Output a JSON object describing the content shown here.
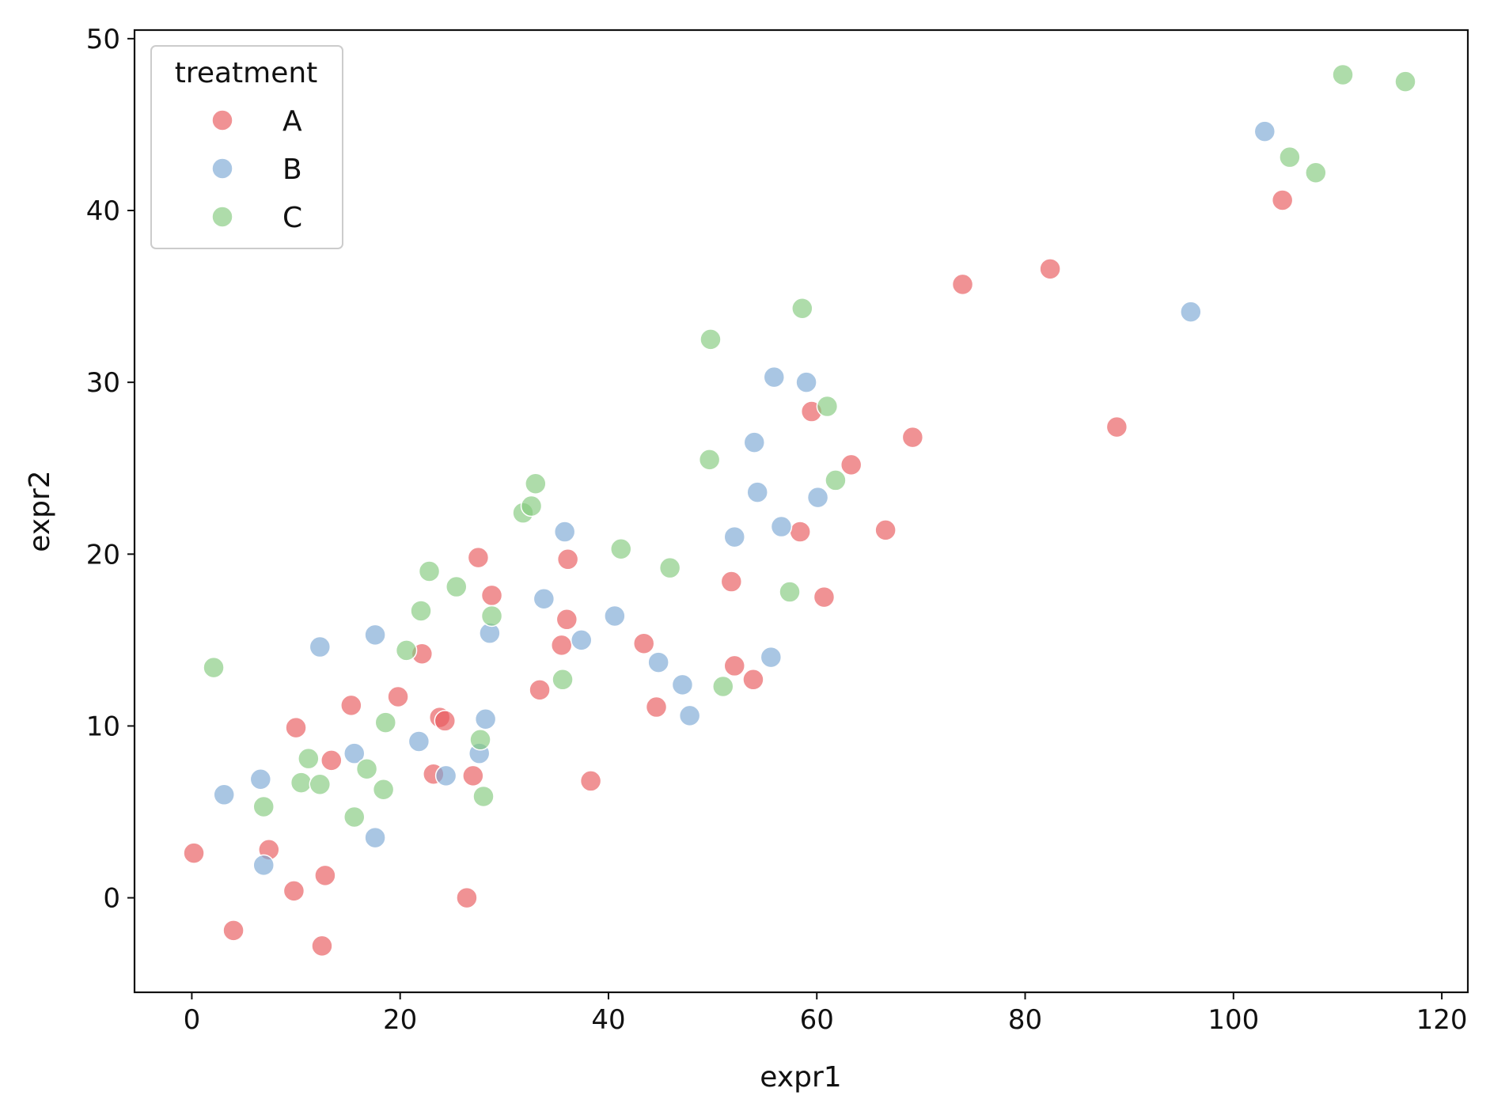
{
  "chart_data": {
    "type": "scatter",
    "xlabel": "expr1",
    "ylabel": "expr2",
    "xlim": [
      -5.5,
      122.5
    ],
    "ylim": [
      -5.5,
      50.5
    ],
    "xticks": [
      0,
      20,
      40,
      60,
      80,
      100,
      120
    ],
    "yticks": [
      0,
      10,
      20,
      30,
      40,
      50
    ],
    "grid": false,
    "legend": {
      "title": "treatment",
      "placement": "top-left"
    },
    "series": [
      {
        "name": "A",
        "color": "#e8585a",
        "points": [
          [
            0.2,
            2.6
          ],
          [
            4.0,
            -1.9
          ],
          [
            7.4,
            2.8
          ],
          [
            9.8,
            0.4
          ],
          [
            10.0,
            9.9
          ],
          [
            12.5,
            -2.8
          ],
          [
            12.8,
            1.3
          ],
          [
            13.4,
            8.0
          ],
          [
            15.3,
            11.2
          ],
          [
            19.8,
            11.7
          ],
          [
            22.1,
            14.2
          ],
          [
            23.2,
            7.2
          ],
          [
            23.8,
            10.5
          ],
          [
            24.3,
            10.3
          ],
          [
            26.4,
            0.0
          ],
          [
            27.0,
            7.1
          ],
          [
            27.5,
            19.8
          ],
          [
            28.8,
            17.6
          ],
          [
            33.4,
            12.1
          ],
          [
            35.5,
            14.7
          ],
          [
            36.0,
            16.2
          ],
          [
            36.1,
            19.7
          ],
          [
            38.3,
            6.8
          ],
          [
            43.4,
            14.8
          ],
          [
            44.6,
            11.1
          ],
          [
            51.8,
            18.4
          ],
          [
            52.1,
            13.5
          ],
          [
            53.9,
            12.7
          ],
          [
            58.4,
            21.3
          ],
          [
            59.5,
            28.3
          ],
          [
            60.7,
            17.5
          ],
          [
            63.3,
            25.2
          ],
          [
            66.6,
            21.4
          ],
          [
            69.2,
            26.8
          ],
          [
            74.0,
            35.7
          ],
          [
            82.4,
            36.6
          ],
          [
            88.8,
            27.4
          ],
          [
            104.7,
            40.6
          ]
        ]
      },
      {
        "name": "B",
        "color": "#7ba8d4",
        "points": [
          [
            3.1,
            6.0
          ],
          [
            6.6,
            6.9
          ],
          [
            6.9,
            1.9
          ],
          [
            12.3,
            14.6
          ],
          [
            15.6,
            8.4
          ],
          [
            17.6,
            15.3
          ],
          [
            17.6,
            3.5
          ],
          [
            21.8,
            9.1
          ],
          [
            24.4,
            7.1
          ],
          [
            27.6,
            8.4
          ],
          [
            28.2,
            10.4
          ],
          [
            28.6,
            15.4
          ],
          [
            33.8,
            17.4
          ],
          [
            35.8,
            21.3
          ],
          [
            37.4,
            15.0
          ],
          [
            40.6,
            16.4
          ],
          [
            44.8,
            13.7
          ],
          [
            47.1,
            12.4
          ],
          [
            47.8,
            10.6
          ],
          [
            52.1,
            21.0
          ],
          [
            54.0,
            26.5
          ],
          [
            54.3,
            23.6
          ],
          [
            55.6,
            14.0
          ],
          [
            55.9,
            30.3
          ],
          [
            56.6,
            21.6
          ],
          [
            59.0,
            30.0
          ],
          [
            60.1,
            23.3
          ],
          [
            95.9,
            34.1
          ],
          [
            103.0,
            44.6
          ]
        ]
      },
      {
        "name": "C",
        "color": "#83c97c",
        "points": [
          [
            2.1,
            13.4
          ],
          [
            6.9,
            5.3
          ],
          [
            10.5,
            6.7
          ],
          [
            11.2,
            8.1
          ],
          [
            12.3,
            6.6
          ],
          [
            15.6,
            4.7
          ],
          [
            16.8,
            7.5
          ],
          [
            18.4,
            6.3
          ],
          [
            18.6,
            10.2
          ],
          [
            20.6,
            14.4
          ],
          [
            22.0,
            16.7
          ],
          [
            22.8,
            19.0
          ],
          [
            25.4,
            18.1
          ],
          [
            27.7,
            9.2
          ],
          [
            28.0,
            5.9
          ],
          [
            28.8,
            16.4
          ],
          [
            31.8,
            22.4
          ],
          [
            32.6,
            22.8
          ],
          [
            33.0,
            24.1
          ],
          [
            35.6,
            12.7
          ],
          [
            41.2,
            20.3
          ],
          [
            45.9,
            19.2
          ],
          [
            49.7,
            25.5
          ],
          [
            49.8,
            32.5
          ],
          [
            51.0,
            12.3
          ],
          [
            57.4,
            17.8
          ],
          [
            58.6,
            34.3
          ],
          [
            61.0,
            28.6
          ],
          [
            61.8,
            24.3
          ],
          [
            105.4,
            43.1
          ],
          [
            107.9,
            42.2
          ],
          [
            110.5,
            47.9
          ],
          [
            116.5,
            47.5
          ]
        ]
      }
    ]
  }
}
